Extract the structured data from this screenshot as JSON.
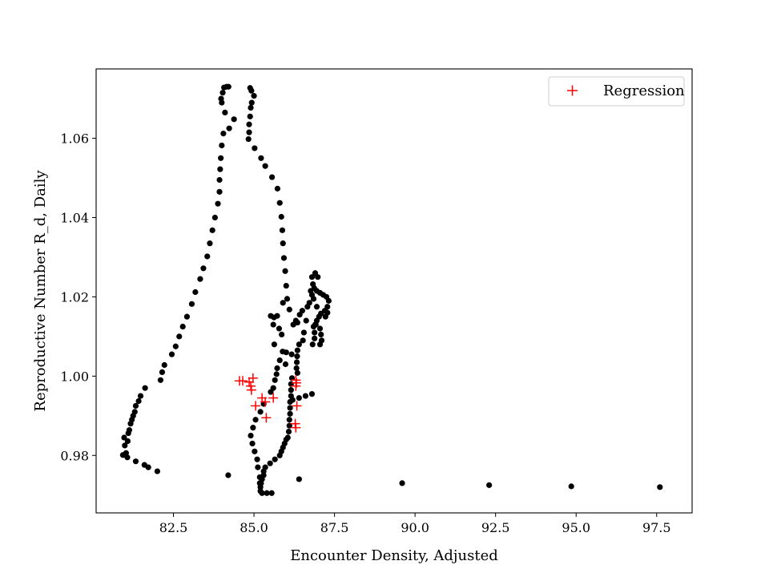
{
  "chart_data": {
    "type": "scatter",
    "xlabel": "Encounter Density, Adjusted",
    "ylabel": "Reproductive Number R_d, Daily",
    "xlim": [
      80.1,
      98.6
    ],
    "ylim": [
      0.9655,
      1.0775
    ],
    "xticks": [
      82.5,
      85.0,
      87.5,
      90.0,
      92.5,
      95.0,
      97.5
    ],
    "xtick_labels": [
      "82.5",
      "85.0",
      "87.5",
      "90.0",
      "92.5",
      "95.0",
      "97.5"
    ],
    "yticks": [
      0.98,
      1.0,
      1.02,
      1.04,
      1.06
    ],
    "ytick_labels": [
      "0.98",
      "1.00",
      "1.02",
      "1.04",
      "1.06"
    ],
    "grid": false,
    "legend": {
      "position": "upper right",
      "entries": [
        "Regression"
      ]
    },
    "colors": {
      "observed": "#000000",
      "regression": "#ff0000"
    },
    "series": [
      {
        "marker": "dot",
        "color": "#000000",
        "points": [
          [
            80.93,
            0.9801
          ],
          [
            81.0,
            0.9801
          ],
          [
            81.07,
            0.9795
          ],
          [
            81.03,
            0.9806
          ],
          [
            80.99,
            0.9825
          ],
          [
            80.97,
            0.9845
          ],
          [
            81.08,
            0.9836
          ],
          [
            81.1,
            0.9856
          ],
          [
            81.13,
            0.9864
          ],
          [
            81.17,
            0.988
          ],
          [
            81.21,
            0.989
          ],
          [
            81.25,
            0.99
          ],
          [
            81.3,
            0.991
          ],
          [
            81.33,
            0.9925
          ],
          [
            81.42,
            0.9937
          ],
          [
            81.48,
            0.995
          ],
          [
            81.62,
            0.997
          ],
          [
            81.33,
            0.9785
          ],
          [
            81.6,
            0.9776
          ],
          [
            81.72,
            0.977
          ],
          [
            82.0,
            0.976
          ],
          [
            82.1,
            0.999
          ],
          [
            82.15,
            1.001
          ],
          [
            82.22,
            1.0028
          ],
          [
            82.45,
            1.0055
          ],
          [
            82.57,
            1.0075
          ],
          [
            82.68,
            1.01
          ],
          [
            82.79,
            1.0125
          ],
          [
            82.92,
            1.015
          ],
          [
            83.07,
            1.0182
          ],
          [
            83.18,
            1.0212
          ],
          [
            83.33,
            1.0245
          ],
          [
            83.43,
            1.0272
          ],
          [
            83.55,
            1.0302
          ],
          [
            83.63,
            1.0335
          ],
          [
            83.71,
            1.0368
          ],
          [
            83.79,
            1.04
          ],
          [
            83.88,
            1.0435
          ],
          [
            83.93,
            1.0465
          ],
          [
            83.93,
            1.0495
          ],
          [
            83.95,
            1.0522
          ],
          [
            83.97,
            1.055
          ],
          [
            84.0,
            1.0582
          ],
          [
            84.05,
            1.0612
          ],
          [
            84.23,
            1.0625
          ],
          [
            84.38,
            1.0648
          ],
          [
            84.1,
            1.0665
          ],
          [
            84.0,
            1.069
          ],
          [
            83.98,
            1.07
          ],
          [
            84.03,
            1.0715
          ],
          [
            84.07,
            1.0728
          ],
          [
            84.15,
            1.073
          ],
          [
            84.21,
            1.073
          ],
          [
            84.88,
            1.0727
          ],
          [
            84.92,
            1.072
          ],
          [
            85.0,
            1.0707
          ],
          [
            84.93,
            1.069
          ],
          [
            84.9,
            1.0677
          ],
          [
            84.88,
            1.0655
          ],
          [
            84.85,
            1.0635
          ],
          [
            84.85,
            1.0615
          ],
          [
            84.83,
            1.0598
          ],
          [
            85.02,
            1.0575
          ],
          [
            85.22,
            1.055
          ],
          [
            85.35,
            1.053
          ],
          [
            85.56,
            1.0502
          ],
          [
            85.73,
            1.0473
          ],
          [
            85.8,
            1.0437
          ],
          [
            85.85,
            1.0402
          ],
          [
            85.88,
            1.0368
          ],
          [
            85.9,
            1.0335
          ],
          [
            85.93,
            1.0298
          ],
          [
            85.97,
            1.0265
          ],
          [
            86.0,
            1.0228
          ],
          [
            86.03,
            1.0195
          ],
          [
            86.1,
            1.0168
          ],
          [
            85.9,
            1.0185
          ],
          [
            85.52,
            1.0152
          ],
          [
            85.62,
            1.0148
          ],
          [
            85.72,
            1.0152
          ],
          [
            85.6,
            1.013
          ],
          [
            85.78,
            1.012
          ],
          [
            85.86,
            1.0105
          ],
          [
            85.63,
            1.008
          ],
          [
            85.89,
            1.0062
          ],
          [
            86.17,
            1.0055
          ],
          [
            86.3,
            1.014
          ],
          [
            86.35,
            1.0135
          ],
          [
            86.22,
            1.013
          ],
          [
            86.5,
            1.0165
          ],
          [
            86.42,
            1.0155
          ],
          [
            86.66,
            1.0175
          ],
          [
            86.72,
            1.0185
          ],
          [
            86.62,
            1.014
          ],
          [
            86.55,
            1.011
          ],
          [
            86.52,
            1.009
          ],
          [
            86.4,
            1.008
          ],
          [
            86.35,
            1.0065
          ],
          [
            86.34,
            1.005
          ],
          [
            86.33,
            1.0035
          ],
          [
            86.32,
            1.002
          ],
          [
            86.35,
            1.0008
          ],
          [
            86.8,
            1.025
          ],
          [
            86.9,
            1.026
          ],
          [
            86.98,
            1.025
          ],
          [
            86.83,
            1.0232
          ],
          [
            86.87,
            1.0222
          ],
          [
            86.95,
            1.0215
          ],
          [
            87.05,
            1.021
          ],
          [
            87.15,
            1.0205
          ],
          [
            87.25,
            1.02
          ],
          [
            87.32,
            1.019
          ],
          [
            87.28,
            1.0175
          ],
          [
            87.2,
            1.0165
          ],
          [
            87.08,
            1.0158
          ],
          [
            87.02,
            1.015
          ],
          [
            86.95,
            1.014
          ],
          [
            86.9,
            1.013
          ],
          [
            86.85,
            1.0125
          ],
          [
            86.88,
            1.011
          ],
          [
            86.88,
            1.0095
          ],
          [
            86.82,
            1.008
          ],
          [
            86.92,
            1.013
          ],
          [
            87.05,
            1.012
          ],
          [
            87.08,
            1.0105
          ],
          [
            87.1,
            1.009
          ],
          [
            87.05,
            1.008
          ],
          [
            87.22,
            1.015
          ],
          [
            87.28,
            1.016
          ],
          [
            86.95,
            1.0175
          ],
          [
            86.85,
            1.0195
          ],
          [
            86.8,
            1.0205
          ],
          [
            86.76,
            1.0215
          ],
          [
            86.18,
            0.9995
          ],
          [
            86.15,
            0.998
          ],
          [
            86.15,
            0.9965
          ],
          [
            86.15,
            0.995
          ],
          [
            86.12,
            0.9935
          ],
          [
            86.12,
            0.992
          ],
          [
            86.12,
            0.9905
          ],
          [
            86.1,
            0.989
          ],
          [
            86.1,
            0.9875
          ],
          [
            86.08,
            0.986
          ],
          [
            86.05,
            0.9845
          ],
          [
            86.0,
            0.984
          ],
          [
            85.95,
            0.983
          ],
          [
            85.9,
            0.982
          ],
          [
            85.85,
            0.981
          ],
          [
            85.8,
            0.98
          ],
          [
            85.65,
            0.979
          ],
          [
            85.5,
            0.978
          ],
          [
            85.35,
            0.977
          ],
          [
            85.3,
            0.976
          ],
          [
            85.3,
            0.975
          ],
          [
            85.25,
            0.974
          ],
          [
            85.22,
            0.973
          ],
          [
            85.2,
            0.972
          ],
          [
            85.2,
            0.971
          ],
          [
            85.25,
            0.9705
          ],
          [
            85.4,
            0.9705
          ],
          [
            85.55,
            0.9705
          ],
          [
            85.18,
            0.973
          ],
          [
            85.18,
            0.9745
          ],
          [
            85.12,
            0.977
          ],
          [
            85.1,
            0.979
          ],
          [
            85.02,
            0.981
          ],
          [
            84.95,
            0.983
          ],
          [
            84.9,
            0.985
          ],
          [
            84.97,
            0.987
          ],
          [
            85.05,
            0.989
          ],
          [
            85.2,
            0.991
          ],
          [
            85.3,
            0.993
          ],
          [
            85.52,
            0.996
          ],
          [
            85.6,
            0.997
          ],
          [
            85.65,
            0.999
          ],
          [
            85.7,
            1.0005
          ],
          [
            85.72,
            1.002
          ],
          [
            85.8,
            1.004
          ],
          [
            85.98,
            1.003
          ],
          [
            86.0,
            1.006
          ],
          [
            86.6,
            0.995
          ],
          [
            86.4,
            0.9945
          ],
          [
            86.2,
            0.994
          ],
          [
            86.8,
            0.9955
          ],
          [
            84.2,
            0.975
          ],
          [
            86.4,
            0.974
          ],
          [
            89.6,
            0.973
          ],
          [
            92.3,
            0.9725
          ],
          [
            94.85,
            0.9722
          ],
          [
            97.6,
            0.972
          ]
        ]
      },
      {
        "name": "Regression",
        "marker": "plus",
        "color": "#ff0000",
        "points": [
          [
            84.55,
            0.9988
          ],
          [
            84.65,
            0.9988
          ],
          [
            84.85,
            0.9985
          ],
          [
            84.9,
            0.9975
          ],
          [
            84.97,
            0.9995
          ],
          [
            84.92,
            0.9965
          ],
          [
            85.05,
            0.9925
          ],
          [
            85.25,
            0.9945
          ],
          [
            85.35,
            0.9935
          ],
          [
            85.6,
            0.9945
          ],
          [
            85.38,
            0.9895
          ],
          [
            86.3,
            0.999
          ],
          [
            86.32,
            0.9983
          ],
          [
            86.3,
            0.9975
          ],
          [
            86.33,
            0.9925
          ],
          [
            86.28,
            0.988
          ],
          [
            86.3,
            0.987
          ]
        ]
      }
    ]
  }
}
